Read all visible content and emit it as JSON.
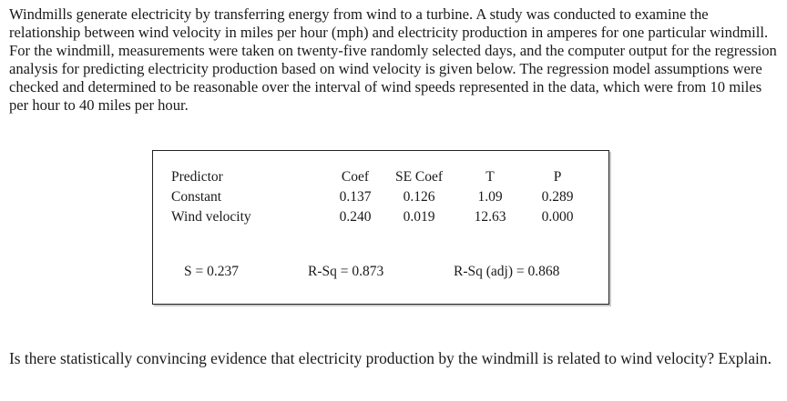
{
  "intro": "Windmills generate electricity by transferring energy from wind to a turbine. A study was conducted to examine the relationship between wind velocity in miles per hour (mph) and electricity production in amperes for one particular windmill. For the windmill, measurements were taken on twenty-five randomly selected days, and the computer output for the regression analysis for predicting electricity production based on wind velocity is given below. The regression model assumptions were checked and determined to be reasonable over the interval of wind speeds represented in the data, which were from 10 miles per hour to 40 miles per hour.",
  "regression": {
    "headers": [
      "Predictor",
      "Coef",
      "SE Coef",
      "T",
      "P"
    ],
    "rows": [
      {
        "predictor": "Constant",
        "coef": "0.137",
        "se_coef": "0.126",
        "t": "1.09",
        "p": "0.289"
      },
      {
        "predictor": "Wind velocity",
        "coef": "0.240",
        "se_coef": "0.019",
        "t": "12.63",
        "p": "0.000"
      }
    ],
    "s": "S = 0.237",
    "r_sq": "R-Sq = 0.873",
    "r_sq_adj": "R-Sq (adj) = 0.868"
  },
  "question": "Is there statistically convincing evidence that electricity production by the windmill is related to wind velocity? Explain."
}
